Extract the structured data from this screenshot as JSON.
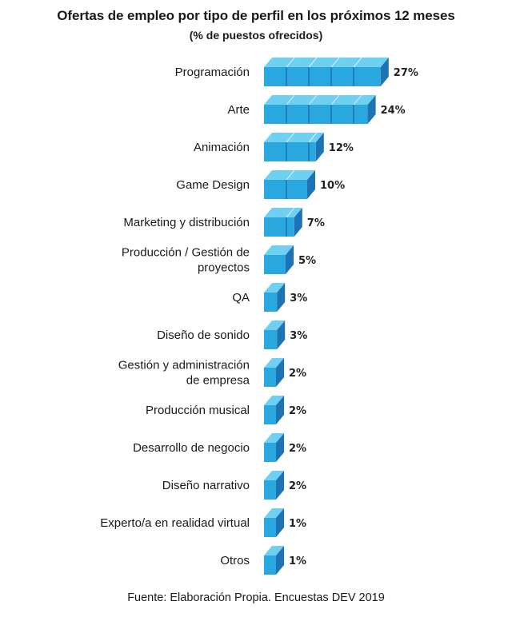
{
  "chart_data": {
    "type": "bar",
    "orientation": "horizontal",
    "title": "Ofertas de empleo por tipo de perfil en los próximos 12 meses",
    "subtitle": "(% de puestos ofrecidos)",
    "source": "Fuente: Elaboración Propia. Encuestas DEV 2019",
    "categories": [
      [
        "Programación"
      ],
      [
        "Arte"
      ],
      [
        "Animación"
      ],
      [
        "Game Design"
      ],
      [
        "Marketing y distribución"
      ],
      [
        "Producción / Gestión de",
        "proyectos"
      ],
      [
        "QA"
      ],
      [
        "Diseño de sonido"
      ],
      [
        "Gestión y administración",
        "de empresa"
      ],
      [
        "Producción musical"
      ],
      [
        "Desarrollo de negocio"
      ],
      [
        "Diseño narrativo"
      ],
      [
        "Experto/a en realidad virtual"
      ],
      [
        "Otros"
      ]
    ],
    "values": [
      27,
      24,
      12,
      10,
      7,
      5,
      3,
      3,
      2,
      2,
      2,
      2,
      1,
      1
    ],
    "value_labels": [
      "27%",
      "24%",
      "12%",
      "10%",
      "7%",
      "5%",
      "3%",
      "3%",
      "2%",
      "2%",
      "2%",
      "2%",
      "1%",
      "1%"
    ],
    "colors": {
      "top": "#6fd0f2",
      "front": "#29a7df",
      "side": "#1d73b4"
    }
  }
}
